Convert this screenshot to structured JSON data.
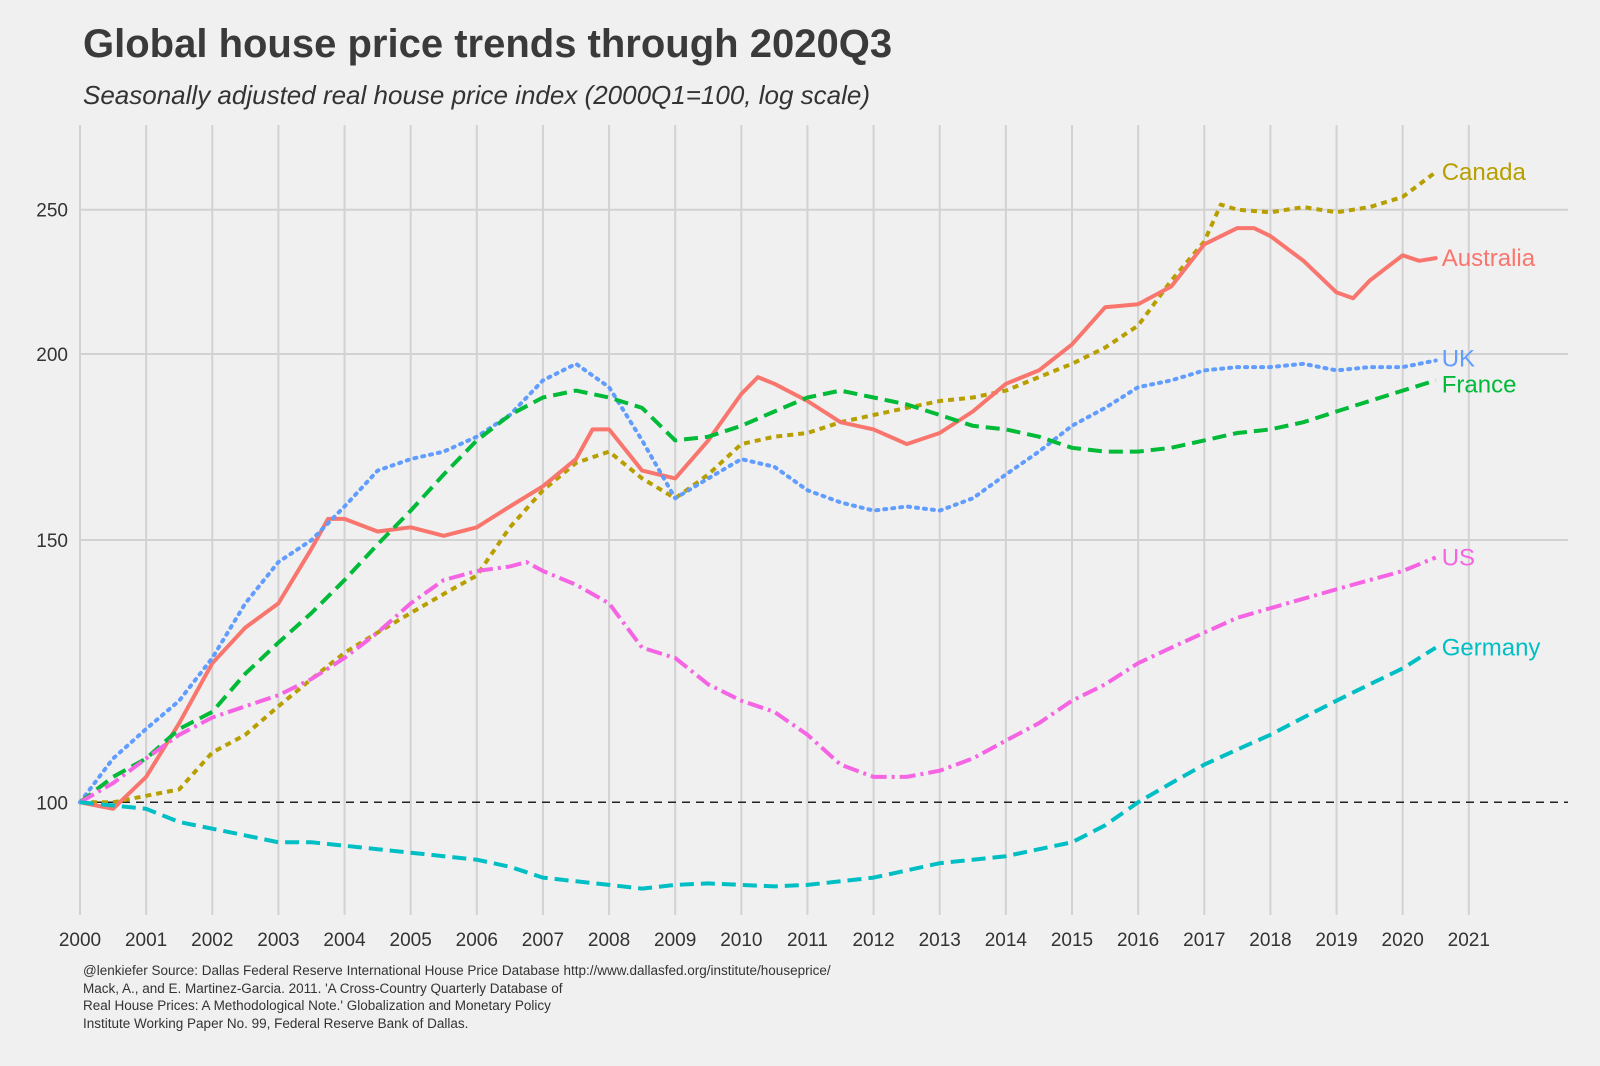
{
  "chart_data": {
    "type": "line",
    "title": "Global house price trends through 2020Q3",
    "subtitle": "Seasonally adjusted real house price index (2000Q1=100, log scale)",
    "xlabel": "",
    "ylabel": "",
    "y_scale": "log",
    "xlim": [
      2000,
      2022.5
    ],
    "ylim": [
      84,
      285
    ],
    "x_ticks": [
      2000,
      2001,
      2002,
      2003,
      2004,
      2005,
      2006,
      2007,
      2008,
      2009,
      2010,
      2011,
      2012,
      2013,
      2014,
      2015,
      2016,
      2017,
      2018,
      2019,
      2020,
      2021
    ],
    "x_tick_labels": [
      "2000",
      "2001",
      "2002",
      "2003",
      "2004",
      "2005",
      "2006",
      "2007",
      "2008",
      "2009",
      "2010",
      "2011",
      "2012",
      "2013",
      "2014",
      "2015",
      "2016",
      "2017",
      "2018",
      "2019",
      "2020",
      "2021"
    ],
    "y_ticks": [
      100,
      150,
      200,
      250
    ],
    "y_tick_labels": [
      "100",
      "150",
      "200",
      "250"
    ],
    "grid": true,
    "reference_line": {
      "y": 100,
      "style": "dashed",
      "color": "#222222"
    },
    "legend": "direct labels at line ends",
    "series": [
      {
        "name": "Canada",
        "color": "#b79f00",
        "dash": "6 5",
        "points": [
          [
            2000.0,
            100
          ],
          [
            2000.5,
            100
          ],
          [
            2001.0,
            101
          ],
          [
            2001.5,
            102
          ],
          [
            2002.0,
            108
          ],
          [
            2002.5,
            111
          ],
          [
            2003.0,
            116
          ],
          [
            2003.5,
            121
          ],
          [
            2004.0,
            126
          ],
          [
            2004.5,
            130
          ],
          [
            2005.0,
            134
          ],
          [
            2005.5,
            138
          ],
          [
            2006.0,
            142
          ],
          [
            2006.5,
            153
          ],
          [
            2007.0,
            162
          ],
          [
            2007.5,
            169
          ],
          [
            2008.0,
            172
          ],
          [
            2008.5,
            165
          ],
          [
            2009.0,
            160
          ],
          [
            2009.5,
            166
          ],
          [
            2010.0,
            174
          ],
          [
            2010.5,
            176
          ],
          [
            2011.0,
            177
          ],
          [
            2011.5,
            180
          ],
          [
            2012.0,
            182
          ],
          [
            2012.5,
            184
          ],
          [
            2013.0,
            186
          ],
          [
            2013.5,
            187
          ],
          [
            2014.0,
            189
          ],
          [
            2014.5,
            193
          ],
          [
            2015.0,
            197
          ],
          [
            2015.5,
            202
          ],
          [
            2016.0,
            209
          ],
          [
            2016.5,
            224
          ],
          [
            2017.0,
            238
          ],
          [
            2017.25,
            252
          ],
          [
            2017.5,
            250
          ],
          [
            2018.0,
            249
          ],
          [
            2018.5,
            251
          ],
          [
            2019.0,
            249
          ],
          [
            2019.5,
            251
          ],
          [
            2020.0,
            255
          ],
          [
            2020.5,
            265
          ]
        ]
      },
      {
        "name": "Australia",
        "color": "#f8766d",
        "dash": "",
        "points": [
          [
            2000.0,
            100
          ],
          [
            2000.5,
            99
          ],
          [
            2001.0,
            104
          ],
          [
            2001.5,
            113
          ],
          [
            2002.0,
            124
          ],
          [
            2002.5,
            131
          ],
          [
            2003.0,
            136
          ],
          [
            2003.5,
            148
          ],
          [
            2003.75,
            155
          ],
          [
            2004.0,
            155
          ],
          [
            2004.5,
            152
          ],
          [
            2005.0,
            153
          ],
          [
            2005.5,
            151
          ],
          [
            2006.0,
            153
          ],
          [
            2006.5,
            158
          ],
          [
            2007.0,
            163
          ],
          [
            2007.5,
            170
          ],
          [
            2007.75,
            178
          ],
          [
            2008.0,
            178
          ],
          [
            2008.5,
            167
          ],
          [
            2009.0,
            165
          ],
          [
            2009.5,
            175
          ],
          [
            2010.0,
            188
          ],
          [
            2010.25,
            193
          ],
          [
            2010.5,
            191
          ],
          [
            2011.0,
            186
          ],
          [
            2011.5,
            180
          ],
          [
            2012.0,
            178
          ],
          [
            2012.5,
            174
          ],
          [
            2013.0,
            177
          ],
          [
            2013.5,
            183
          ],
          [
            2014.0,
            191
          ],
          [
            2014.5,
            195
          ],
          [
            2015.0,
            203
          ],
          [
            2015.5,
            215
          ],
          [
            2016.0,
            216
          ],
          [
            2016.5,
            222
          ],
          [
            2017.0,
            237
          ],
          [
            2017.5,
            243
          ],
          [
            2017.75,
            243
          ],
          [
            2018.0,
            240
          ],
          [
            2018.5,
            231
          ],
          [
            2019.0,
            220
          ],
          [
            2019.25,
            218
          ],
          [
            2019.5,
            224
          ],
          [
            2020.0,
            233
          ],
          [
            2020.25,
            231
          ],
          [
            2020.5,
            232
          ]
        ]
      },
      {
        "name": "UK",
        "color": "#619cff",
        "dash": "2 6",
        "points": [
          [
            2000.0,
            100
          ],
          [
            2000.5,
            107
          ],
          [
            2001.0,
            112
          ],
          [
            2001.5,
            117
          ],
          [
            2002.0,
            125
          ],
          [
            2002.5,
            136
          ],
          [
            2003.0,
            145
          ],
          [
            2003.5,
            150
          ],
          [
            2004.0,
            158
          ],
          [
            2004.5,
            167
          ],
          [
            2005.0,
            170
          ],
          [
            2005.5,
            172
          ],
          [
            2006.0,
            176
          ],
          [
            2006.5,
            182
          ],
          [
            2007.0,
            192
          ],
          [
            2007.5,
            197
          ],
          [
            2008.0,
            190
          ],
          [
            2008.5,
            175
          ],
          [
            2009.0,
            160
          ],
          [
            2009.5,
            165
          ],
          [
            2010.0,
            170
          ],
          [
            2010.5,
            168
          ],
          [
            2011.0,
            162
          ],
          [
            2011.5,
            159
          ],
          [
            2012.0,
            157
          ],
          [
            2012.5,
            158
          ],
          [
            2013.0,
            157
          ],
          [
            2013.5,
            160
          ],
          [
            2014.0,
            166
          ],
          [
            2014.5,
            172
          ],
          [
            2015.0,
            179
          ],
          [
            2015.5,
            184
          ],
          [
            2016.0,
            190
          ],
          [
            2016.5,
            192
          ],
          [
            2017.0,
            195
          ],
          [
            2017.5,
            196
          ],
          [
            2018.0,
            196
          ],
          [
            2018.5,
            197
          ],
          [
            2019.0,
            195
          ],
          [
            2019.5,
            196
          ],
          [
            2020.0,
            196
          ],
          [
            2020.5,
            198
          ]
        ]
      },
      {
        "name": "France",
        "color": "#00ba38",
        "dash": "14 7",
        "points": [
          [
            2000.0,
            100
          ],
          [
            2000.5,
            104
          ],
          [
            2001.0,
            107
          ],
          [
            2001.5,
            112
          ],
          [
            2002.0,
            115
          ],
          [
            2002.5,
            122
          ],
          [
            2003.0,
            128
          ],
          [
            2003.5,
            134
          ],
          [
            2004.0,
            141
          ],
          [
            2004.5,
            149
          ],
          [
            2005.0,
            157
          ],
          [
            2005.5,
            166
          ],
          [
            2006.0,
            175
          ],
          [
            2006.5,
            182
          ],
          [
            2007.0,
            187
          ],
          [
            2007.5,
            189
          ],
          [
            2008.0,
            187
          ],
          [
            2008.5,
            184
          ],
          [
            2009.0,
            175
          ],
          [
            2009.5,
            176
          ],
          [
            2010.0,
            179
          ],
          [
            2010.5,
            183
          ],
          [
            2011.0,
            187
          ],
          [
            2011.5,
            189
          ],
          [
            2012.0,
            187
          ],
          [
            2012.5,
            185
          ],
          [
            2013.0,
            182
          ],
          [
            2013.5,
            179
          ],
          [
            2014.0,
            178
          ],
          [
            2014.5,
            176
          ],
          [
            2015.0,
            173
          ],
          [
            2015.5,
            172
          ],
          [
            2016.0,
            172
          ],
          [
            2016.5,
            173
          ],
          [
            2017.0,
            175
          ],
          [
            2017.5,
            177
          ],
          [
            2018.0,
            178
          ],
          [
            2018.5,
            180
          ],
          [
            2019.0,
            183
          ],
          [
            2019.5,
            186
          ],
          [
            2020.0,
            189
          ],
          [
            2020.5,
            192
          ]
        ]
      },
      {
        "name": "US",
        "color": "#f564e3",
        "dash": "16 5 3 5",
        "points": [
          [
            2000.0,
            100
          ],
          [
            2000.5,
            103
          ],
          [
            2001.0,
            107
          ],
          [
            2001.5,
            111
          ],
          [
            2002.0,
            114
          ],
          [
            2002.5,
            116
          ],
          [
            2003.0,
            118
          ],
          [
            2003.5,
            121
          ],
          [
            2004.0,
            125
          ],
          [
            2004.5,
            130
          ],
          [
            2005.0,
            136
          ],
          [
            2005.5,
            141
          ],
          [
            2006.0,
            143
          ],
          [
            2006.5,
            144
          ],
          [
            2006.75,
            145
          ],
          [
            2007.0,
            143
          ],
          [
            2007.5,
            140
          ],
          [
            2008.0,
            136
          ],
          [
            2008.5,
            127
          ],
          [
            2009.0,
            125
          ],
          [
            2009.5,
            120
          ],
          [
            2010.0,
            117
          ],
          [
            2010.5,
            115
          ],
          [
            2011.0,
            111
          ],
          [
            2011.5,
            106
          ],
          [
            2012.0,
            104
          ],
          [
            2012.5,
            104
          ],
          [
            2013.0,
            105
          ],
          [
            2013.5,
            107
          ],
          [
            2014.0,
            110
          ],
          [
            2014.5,
            113
          ],
          [
            2015.0,
            117
          ],
          [
            2015.5,
            120
          ],
          [
            2016.0,
            124
          ],
          [
            2016.5,
            127
          ],
          [
            2017.0,
            130
          ],
          [
            2017.5,
            133
          ],
          [
            2018.0,
            135
          ],
          [
            2018.5,
            137
          ],
          [
            2019.0,
            139
          ],
          [
            2019.5,
            141
          ],
          [
            2020.0,
            143
          ],
          [
            2020.5,
            146
          ]
        ]
      },
      {
        "name": "Germany",
        "color": "#00bfc4",
        "dash": "14 7",
        "points": [
          [
            2000.0,
            100
          ],
          [
            2000.5,
            99.5
          ],
          [
            2001.0,
            99
          ],
          [
            2001.5,
            97
          ],
          [
            2002.0,
            96
          ],
          [
            2002.5,
            95
          ],
          [
            2003.0,
            94
          ],
          [
            2003.5,
            94
          ],
          [
            2004.0,
            93.5
          ],
          [
            2004.5,
            93
          ],
          [
            2005.0,
            92.5
          ],
          [
            2005.5,
            92
          ],
          [
            2006.0,
            91.5
          ],
          [
            2006.5,
            90.5
          ],
          [
            2007.0,
            89
          ],
          [
            2007.5,
            88.5
          ],
          [
            2008.0,
            88
          ],
          [
            2008.5,
            87.5
          ],
          [
            2009.0,
            88
          ],
          [
            2009.5,
            88.2
          ],
          [
            2010.0,
            88
          ],
          [
            2010.5,
            87.8
          ],
          [
            2011.0,
            88
          ],
          [
            2011.5,
            88.5
          ],
          [
            2012.0,
            89
          ],
          [
            2012.5,
            90
          ],
          [
            2013.0,
            91
          ],
          [
            2013.5,
            91.5
          ],
          [
            2014.0,
            92
          ],
          [
            2014.5,
            93
          ],
          [
            2015.0,
            94
          ],
          [
            2015.5,
            96.5
          ],
          [
            2016.0,
            100
          ],
          [
            2016.5,
            103
          ],
          [
            2017.0,
            106
          ],
          [
            2017.5,
            108.5
          ],
          [
            2018.0,
            111
          ],
          [
            2018.5,
            114
          ],
          [
            2019.0,
            117
          ],
          [
            2019.5,
            120
          ],
          [
            2020.0,
            123
          ],
          [
            2020.5,
            127
          ]
        ]
      }
    ]
  },
  "caption": {
    "line1": "@lenkiefer Source: Dallas Federal Reserve International House Price Database  http://www.dallasfed.org/institute/houseprice/",
    "line2": "Mack, A., and E. Martinez-Garcia. 2011. 'A Cross-Country Quarterly Database of",
    "line3": "Real House Prices: A Methodological Note.' Globalization and Monetary Policy",
    "line4": "Institute Working Paper No. 99, Federal Reserve Bank of Dallas."
  }
}
